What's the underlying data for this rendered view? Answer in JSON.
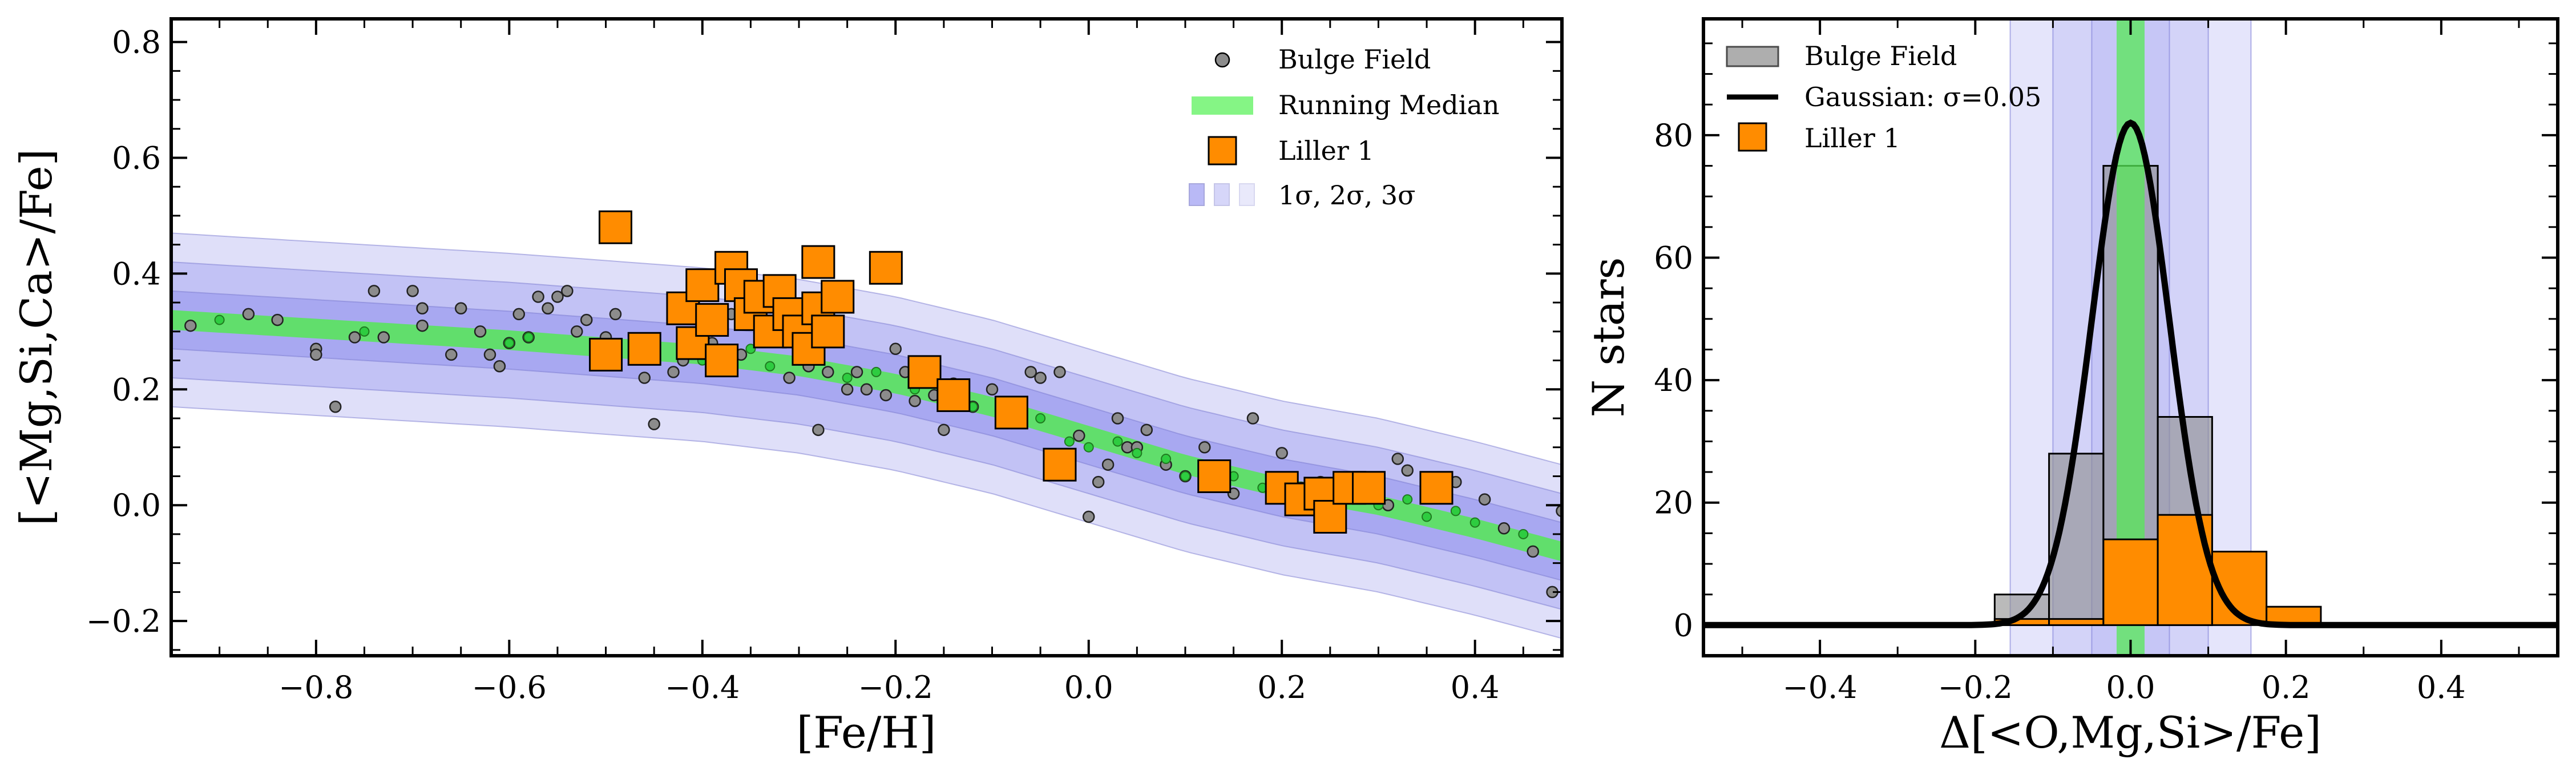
{
  "figure": {
    "left_panel": "scatter",
    "right_panel": "histogram"
  },
  "chart_data": [
    {
      "type": "scatter",
      "xlabel": "[Fe/H]",
      "ylabel": "[<Mg,Si,Ca>/Fe]",
      "xlim": [
        -0.95,
        0.49
      ],
      "ylim": [
        -0.26,
        0.84
      ],
      "xticks": [
        -0.8,
        -0.6,
        -0.4,
        -0.2,
        0.0,
        0.2,
        0.4
      ],
      "xtick_labels": [
        "−0.8",
        "−0.6",
        "−0.4",
        "−0.2",
        "0.0",
        "0.2",
        "0.4"
      ],
      "yticks": [
        -0.2,
        0.0,
        0.2,
        0.4,
        0.6,
        0.8
      ],
      "ytick_labels": [
        "−0.2",
        "0.0",
        "0.2",
        "0.4",
        "0.6",
        "0.8"
      ],
      "legend": {
        "position": "top-right",
        "entries": [
          {
            "label": "Bulge Field",
            "marker": "circle"
          },
          {
            "label": "Running Median",
            "marker": "band"
          },
          {
            "label": "Liller 1",
            "marker": "square"
          },
          {
            "label": "1σ, 2σ, 3σ",
            "marker": "bands"
          }
        ]
      },
      "running_median": {
        "x": [
          -0.95,
          -0.8,
          -0.6,
          -0.4,
          -0.3,
          -0.2,
          -0.1,
          0.0,
          0.1,
          0.2,
          0.3,
          0.4,
          0.49
        ],
        "y": [
          0.32,
          0.305,
          0.285,
          0.26,
          0.24,
          0.21,
          0.17,
          0.12,
          0.07,
          0.03,
          0.0,
          -0.04,
          -0.08
        ],
        "sigma": 0.05
      },
      "series": [
        {
          "name": "Bulge Field",
          "color": "#8c8c8c",
          "x": [
            -0.93,
            -0.87,
            -0.84,
            -0.8,
            -0.8,
            -0.78,
            -0.76,
            -0.74,
            -0.73,
            -0.7,
            -0.69,
            -0.69,
            -0.66,
            -0.65,
            -0.63,
            -0.62,
            -0.61,
            -0.6,
            -0.59,
            -0.58,
            -0.57,
            -0.56,
            -0.55,
            -0.54,
            -0.53,
            -0.52,
            -0.5,
            -0.49,
            -0.47,
            -0.46,
            -0.45,
            -0.43,
            -0.42,
            -0.41,
            -0.39,
            -0.37,
            -0.36,
            -0.33,
            -0.31,
            -0.29,
            -0.28,
            -0.27,
            -0.25,
            -0.24,
            -0.23,
            -0.21,
            -0.2,
            -0.19,
            -0.18,
            -0.16,
            -0.15,
            -0.14,
            -0.12,
            -0.1,
            -0.08,
            -0.06,
            -0.05,
            -0.03,
            -0.01,
            0.0,
            0.01,
            0.02,
            0.03,
            0.04,
            0.05,
            0.06,
            0.08,
            0.1,
            0.12,
            0.14,
            0.15,
            0.17,
            0.19,
            0.2,
            0.21,
            0.22,
            0.24,
            0.25,
            0.27,
            0.3,
            0.31,
            0.32,
            0.33,
            0.35,
            0.38,
            0.41,
            0.43,
            0.46,
            0.48,
            0.49
          ],
          "y": [
            0.31,
            0.33,
            0.32,
            0.27,
            0.26,
            0.17,
            0.29,
            0.37,
            0.29,
            0.37,
            0.34,
            0.31,
            0.26,
            0.34,
            0.3,
            0.26,
            0.24,
            0.28,
            0.33,
            0.29,
            0.36,
            0.34,
            0.36,
            0.37,
            0.3,
            0.32,
            0.29,
            0.33,
            0.27,
            0.22,
            0.14,
            0.23,
            0.25,
            0.28,
            0.28,
            0.33,
            0.26,
            0.31,
            0.22,
            0.24,
            0.13,
            0.23,
            0.2,
            0.23,
            0.2,
            0.19,
            0.27,
            0.23,
            0.18,
            0.19,
            0.13,
            0.21,
            0.17,
            0.2,
            0.16,
            0.23,
            0.22,
            0.23,
            0.12,
            -0.02,
            0.04,
            0.07,
            0.15,
            0.1,
            0.1,
            0.13,
            0.07,
            0.05,
            0.1,
            0.04,
            0.02,
            0.15,
            0.03,
            0.09,
            0.01,
            0.03,
            0.04,
            0.03,
            0.04,
            0.02,
            0.0,
            0.08,
            0.06,
            0.03,
            0.04,
            0.01,
            -0.04,
            -0.08,
            -0.15,
            -0.01
          ]
        },
        {
          "name": "Bulge Field (running median)",
          "color": "#2ecc40",
          "x": [
            -0.9,
            -0.75,
            -0.6,
            -0.58,
            -0.5,
            -0.45,
            -0.4,
            -0.35,
            -0.33,
            -0.3,
            -0.25,
            -0.22,
            -0.18,
            -0.15,
            -0.12,
            -0.08,
            -0.05,
            -0.02,
            0.0,
            0.03,
            0.05,
            0.08,
            0.1,
            0.12,
            0.15,
            0.18,
            0.2,
            0.22,
            0.25,
            0.28,
            0.3,
            0.33,
            0.35,
            0.38,
            0.4,
            0.45
          ],
          "y": [
            0.32,
            0.3,
            0.28,
            0.29,
            0.27,
            0.26,
            0.25,
            0.27,
            0.24,
            0.25,
            0.22,
            0.23,
            0.2,
            0.18,
            0.17,
            0.14,
            0.15,
            0.11,
            0.1,
            0.11,
            0.09,
            0.08,
            0.05,
            0.06,
            0.05,
            0.03,
            0.02,
            0.03,
            0.02,
            0.01,
            0.0,
            0.01,
            -0.02,
            -0.01,
            -0.03,
            -0.05
          ]
        },
        {
          "name": "Liller 1",
          "color": "#ff8c00",
          "x": [
            -0.49,
            -0.5,
            -0.46,
            -0.42,
            -0.41,
            -0.4,
            -0.39,
            -0.38,
            -0.37,
            -0.36,
            -0.35,
            -0.34,
            -0.33,
            -0.32,
            -0.31,
            -0.3,
            -0.29,
            -0.28,
            -0.28,
            -0.27,
            -0.26,
            -0.21,
            -0.17,
            -0.14,
            -0.08,
            -0.03,
            0.13,
            0.2,
            0.22,
            0.24,
            0.25,
            0.27,
            0.29,
            0.36
          ],
          "y": [
            0.48,
            0.26,
            0.27,
            0.34,
            0.28,
            0.38,
            0.32,
            0.25,
            0.41,
            0.38,
            0.33,
            0.36,
            0.3,
            0.37,
            0.33,
            0.3,
            0.27,
            0.34,
            0.42,
            0.3,
            0.36,
            0.41,
            0.23,
            0.19,
            0.16,
            0.07,
            0.05,
            0.03,
            0.01,
            0.02,
            -0.02,
            0.03,
            0.03,
            0.03
          ]
        }
      ]
    },
    {
      "type": "bar",
      "xlabel": "Δ[<O,Mg,Si>/Fe]",
      "ylabel": "N stars",
      "xlim": [
        -0.55,
        0.55
      ],
      "ylim": [
        -5,
        99
      ],
      "xticks": [
        -0.4,
        -0.2,
        0.0,
        0.2,
        0.4
      ],
      "xtick_labels": [
        "−0.4",
        "−0.2",
        "0.0",
        "0.2",
        "0.4"
      ],
      "yticks": [
        0,
        20,
        40,
        60,
        80
      ],
      "ytick_labels": [
        "0",
        "20",
        "40",
        "60",
        "80"
      ],
      "bin_edges": [
        -0.175,
        -0.105,
        -0.035,
        0.035,
        0.105,
        0.175,
        0.245
      ],
      "legend": {
        "position": "top-left",
        "entries": [
          {
            "label": "Bulge Field",
            "marker": "patch"
          },
          {
            "label": "Gaussian: σ=0.05",
            "marker": "line"
          },
          {
            "label": "Liller 1",
            "marker": "square"
          }
        ]
      },
      "series": [
        {
          "name": "Bulge Field",
          "color": "#8c8c8c",
          "values": [
            5,
            28,
            75,
            34,
            0,
            0
          ]
        },
        {
          "name": "Liller 1",
          "color": "#ff8c00",
          "values": [
            1,
            1,
            14,
            18,
            12,
            3
          ]
        }
      ],
      "gaussian": {
        "mu": 0.0,
        "sigma": 0.05,
        "amplitude": 82
      },
      "sigma_bands": [
        0.05,
        0.1,
        0.155
      ],
      "median_band_halfwidth": 0.018
    }
  ]
}
